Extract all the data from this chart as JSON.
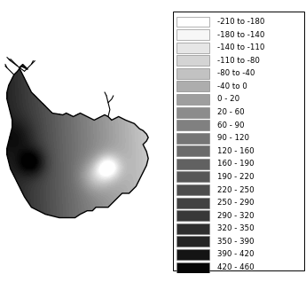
{
  "legend_labels": [
    "-210 to -180",
    "-180 to -140",
    "-140 to -110",
    "-110 to -80",
    "-80 to -40",
    "-40 to 0",
    "0 - 20",
    "20 - 60",
    "60 - 90",
    "90 - 120",
    "120 - 160",
    "160 - 190",
    "190 - 220",
    "220 - 250",
    "250 - 290",
    "290 - 320",
    "320 - 350",
    "350 - 390",
    "390 - 420",
    "420 - 460"
  ],
  "legend_grays": [
    1.0,
    0.97,
    0.9,
    0.83,
    0.76,
    0.68,
    0.62,
    0.55,
    0.5,
    0.46,
    0.42,
    0.38,
    0.34,
    0.3,
    0.26,
    0.22,
    0.18,
    0.14,
    0.08,
    0.02
  ],
  "fig_width": 3.45,
  "fig_height": 3.18,
  "dpi": 100,
  "background_color": "#ffffff",
  "map_outline_color": "#000000",
  "legend_fontsize": 6.2
}
